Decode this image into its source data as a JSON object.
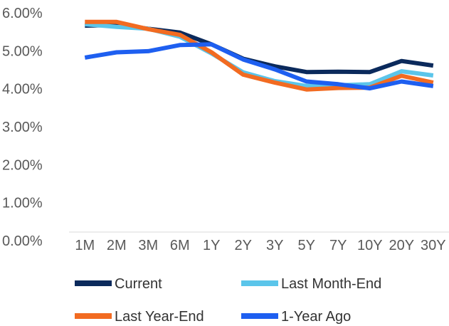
{
  "chart_data": {
    "type": "line",
    "categories": [
      "1M",
      "2M",
      "3M",
      "6M",
      "1Y",
      "2Y",
      "3Y",
      "5Y",
      "7Y",
      "10Y",
      "20Y",
      "30Y"
    ],
    "y_ticks": [
      "0.00%",
      "1.00%",
      "2.00%",
      "3.00%",
      "4.00%",
      "5.00%",
      "6.00%"
    ],
    "ylim": [
      0,
      6
    ],
    "grid": false,
    "legend_position": "bottom",
    "series": [
      {
        "name": "Current",
        "color": "#0b2a5c",
        "values": [
          5.66,
          5.68,
          5.58,
          5.48,
          5.17,
          4.79,
          4.59,
          4.44,
          4.45,
          4.44,
          4.73,
          4.61
        ]
      },
      {
        "name": "Last Month-End",
        "color": "#5bc5ea",
        "values": [
          5.7,
          5.63,
          5.58,
          5.37,
          4.93,
          4.43,
          4.2,
          4.07,
          4.09,
          4.12,
          4.46,
          4.35
        ]
      },
      {
        "name": "Last Year-End",
        "color": "#f26b21",
        "values": [
          5.76,
          5.76,
          5.57,
          5.42,
          4.96,
          4.37,
          4.16,
          3.98,
          4.02,
          4.03,
          4.34,
          4.16
        ]
      },
      {
        "name": "1-Year Ago",
        "color": "#1e5ff0",
        "values": [
          4.82,
          4.96,
          4.99,
          5.15,
          5.17,
          4.77,
          4.51,
          4.19,
          4.12,
          4.01,
          4.19,
          4.07
        ]
      }
    ]
  }
}
